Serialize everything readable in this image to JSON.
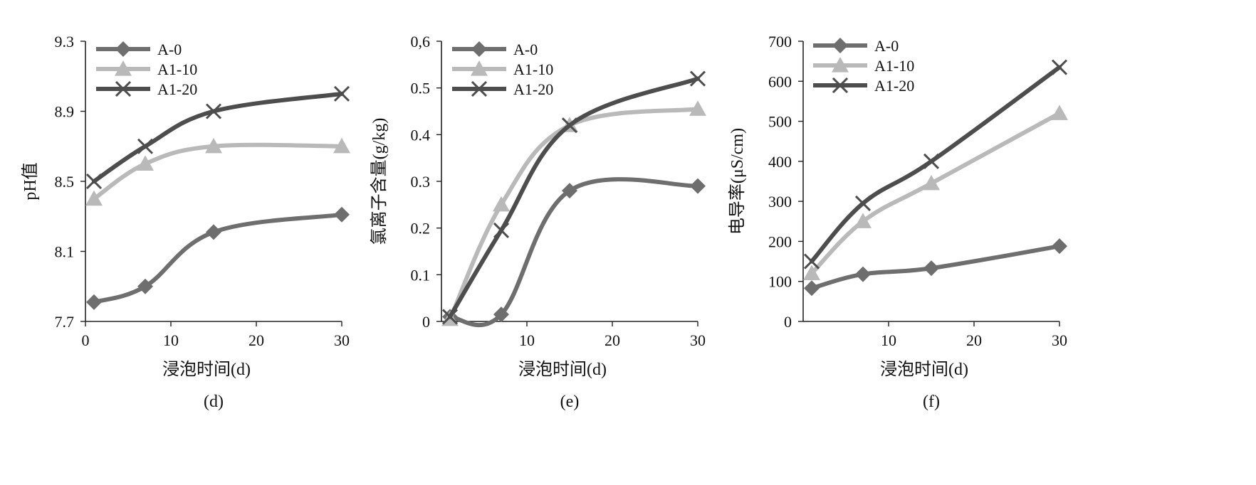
{
  "colors": {
    "A-0": "#6e6e6e",
    "A1-10": "#b9b9b9",
    "A1-20": "#4d4d4d",
    "axis": "#222222"
  },
  "markers": {
    "A-0": "diamond",
    "A1-10": "triangle",
    "A1-20": "cross"
  },
  "chart_data": [
    {
      "id": "d",
      "type": "line",
      "smooth": true,
      "subtitle": "(d)",
      "xlabel": "浸泡时间(d)",
      "ylabel": "pH值",
      "xlim": [
        0,
        30
      ],
      "ylim": [
        7.7,
        9.3
      ],
      "xticks": [
        0,
        10,
        20,
        30
      ],
      "yticks": [
        7.7,
        8.1,
        8.5,
        8.9,
        9.3
      ],
      "ytick_labels": [
        "7.7",
        "8.1",
        "8.5",
        "8.9",
        "9.3"
      ],
      "xtick_labels": [
        "0",
        "10",
        "20",
        "30"
      ],
      "legend": "top-left",
      "x": [
        1,
        7,
        15,
        30
      ],
      "series": [
        {
          "name": "A-0",
          "values": [
            7.81,
            7.9,
            8.21,
            8.31
          ]
        },
        {
          "name": "A1-10",
          "values": [
            8.4,
            8.6,
            8.7,
            8.7
          ]
        },
        {
          "name": "A1-20",
          "values": [
            8.5,
            8.7,
            8.9,
            9.0
          ]
        }
      ]
    },
    {
      "id": "e",
      "type": "line",
      "smooth": true,
      "subtitle": "(e)",
      "xlabel": "浸泡时间(d)",
      "ylabel": "氯离子含量(g/kg)",
      "xlim": [
        0,
        30
      ],
      "ylim": [
        0,
        0.6
      ],
      "xticks": [
        10,
        20,
        30
      ],
      "yticks": [
        0,
        0.1,
        0.2,
        0.3,
        0.4,
        0.5,
        0.6
      ],
      "ytick_labels": [
        "0",
        "0.1",
        "0.2",
        "0.3",
        "0.4",
        "0.5",
        "0,6"
      ],
      "xtick_labels": [
        "10",
        "20",
        "30"
      ],
      "legend": "top-left",
      "x": [
        1,
        7,
        15,
        30
      ],
      "series": [
        {
          "name": "A-0",
          "values": [
            0.01,
            0.015,
            0.28,
            0.29
          ]
        },
        {
          "name": "A1-10",
          "values": [
            0.005,
            0.25,
            0.42,
            0.455
          ]
        },
        {
          "name": "A1-20",
          "values": [
            0.01,
            0.195,
            0.42,
            0.52
          ]
        }
      ]
    },
    {
      "id": "f",
      "type": "line",
      "smooth": true,
      "subtitle": "(f)",
      "xlabel": "浸泡时间(d)",
      "ylabel": "电导率(μS/cm)",
      "xlim": [
        0,
        30
      ],
      "ylim": [
        0,
        700
      ],
      "xticks": [
        10,
        20,
        30
      ],
      "yticks": [
        0,
        100,
        200,
        300,
        400,
        500,
        600,
        700
      ],
      "ytick_labels": [
        "0",
        "100",
        "200",
        "300",
        "400",
        "500",
        "600",
        "700"
      ],
      "xtick_labels": [
        "10",
        "20",
        "30"
      ],
      "legend": "top-left",
      "x": [
        1,
        7,
        15,
        30
      ],
      "series": [
        {
          "name": "A-0",
          "values": [
            83,
            118,
            133,
            188
          ]
        },
        {
          "name": "A1-10",
          "values": [
            120,
            250,
            345,
            520
          ]
        },
        {
          "name": "A1-20",
          "values": [
            150,
            295,
            400,
            635
          ]
        }
      ]
    }
  ]
}
